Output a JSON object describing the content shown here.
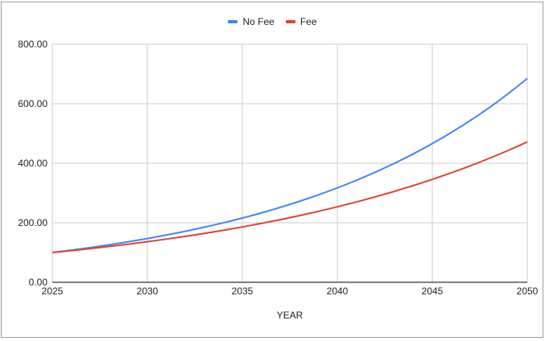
{
  "chart_data": {
    "type": "line",
    "title": "",
    "xlabel": "YEAR",
    "ylabel": "",
    "ylim": [
      0,
      800
    ],
    "xlim": [
      2025,
      2050
    ],
    "grid": true,
    "legend_position": "top",
    "y_ticks": [
      "0.00",
      "200.00",
      "400.00",
      "600.00",
      "800.00"
    ],
    "x_ticks": [
      "2025",
      "2030",
      "2035",
      "2040",
      "2045",
      "2050"
    ],
    "x": [
      2025,
      2026,
      2027,
      2028,
      2029,
      2030,
      2031,
      2032,
      2033,
      2034,
      2035,
      2036,
      2037,
      2038,
      2039,
      2040,
      2041,
      2042,
      2043,
      2044,
      2045,
      2046,
      2047,
      2048,
      2049,
      2050
    ],
    "series": [
      {
        "name": "No Fee",
        "color": "#4285f4",
        "values": [
          100.0,
          108.0,
          116.64,
          125.97,
          136.05,
          146.93,
          158.69,
          171.38,
          185.09,
          199.9,
          215.89,
          233.16,
          251.82,
          271.96,
          293.72,
          317.22,
          342.59,
          370.0,
          399.6,
          431.57,
          466.1,
          503.38,
          543.65,
          587.15,
          634.12,
          684.85
        ]
      },
      {
        "name": "Fee",
        "color": "#db4437",
        "values": [
          100.0,
          106.4,
          113.21,
          120.46,
          128.17,
          136.37,
          145.1,
          154.38,
          164.26,
          174.78,
          185.96,
          197.86,
          210.53,
          224.0,
          238.34,
          253.59,
          269.82,
          287.09,
          305.46,
          325.01,
          345.81,
          367.94,
          391.49,
          416.55,
          443.21,
          471.57
        ]
      }
    ]
  },
  "legend": {
    "items": [
      {
        "label": "No Fee",
        "color": "#4285f4"
      },
      {
        "label": "Fee",
        "color": "#db4437"
      }
    ]
  }
}
